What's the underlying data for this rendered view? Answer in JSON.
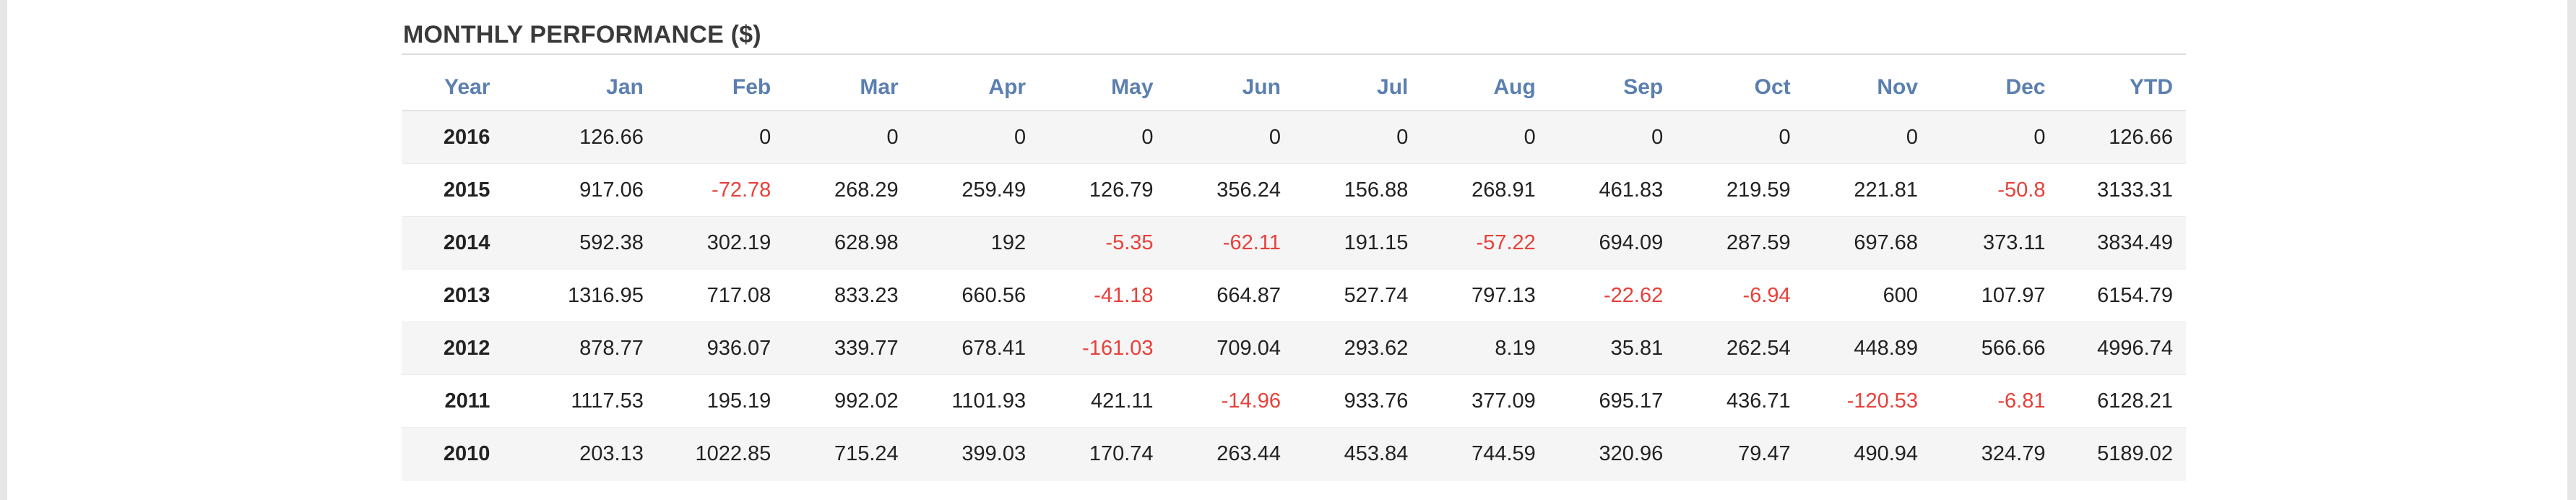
{
  "title": "MONTHLY PERFORMANCE ($)",
  "colors": {
    "header_text": "#5b7fb0",
    "negative": "#e8403a",
    "row_alt": "#f5f5f5"
  },
  "columns": [
    "Year",
    "Jan",
    "Feb",
    "Mar",
    "Apr",
    "May",
    "Jun",
    "Jul",
    "Aug",
    "Sep",
    "Oct",
    "Nov",
    "Dec",
    "YTD"
  ],
  "rows": [
    [
      "2016",
      "126.66",
      "0",
      "0",
      "0",
      "0",
      "0",
      "0",
      "0",
      "0",
      "0",
      "0",
      "0",
      "126.66"
    ],
    [
      "2015",
      "917.06",
      "-72.78",
      "268.29",
      "259.49",
      "126.79",
      "356.24",
      "156.88",
      "268.91",
      "461.83",
      "219.59",
      "221.81",
      "-50.8",
      "3133.31"
    ],
    [
      "2014",
      "592.38",
      "302.19",
      "628.98",
      "192",
      "-5.35",
      "-62.11",
      "191.15",
      "-57.22",
      "694.09",
      "287.59",
      "697.68",
      "373.11",
      "3834.49"
    ],
    [
      "2013",
      "1316.95",
      "717.08",
      "833.23",
      "660.56",
      "-41.18",
      "664.87",
      "527.74",
      "797.13",
      "-22.62",
      "-6.94",
      "600",
      "107.97",
      "6154.79"
    ],
    [
      "2012",
      "878.77",
      "936.07",
      "339.77",
      "678.41",
      "-161.03",
      "709.04",
      "293.62",
      "8.19",
      "35.81",
      "262.54",
      "448.89",
      "566.66",
      "4996.74"
    ],
    [
      "2011",
      "1117.53",
      "195.19",
      "992.02",
      "1101.93",
      "421.11",
      "-14.96",
      "933.76",
      "377.09",
      "695.17",
      "436.71",
      "-120.53",
      "-6.81",
      "6128.21"
    ],
    [
      "2010",
      "203.13",
      "1022.85",
      "715.24",
      "399.03",
      "170.74",
      "263.44",
      "453.84",
      "744.59",
      "320.96",
      "79.47",
      "490.94",
      "324.79",
      "5189.02"
    ]
  ]
}
